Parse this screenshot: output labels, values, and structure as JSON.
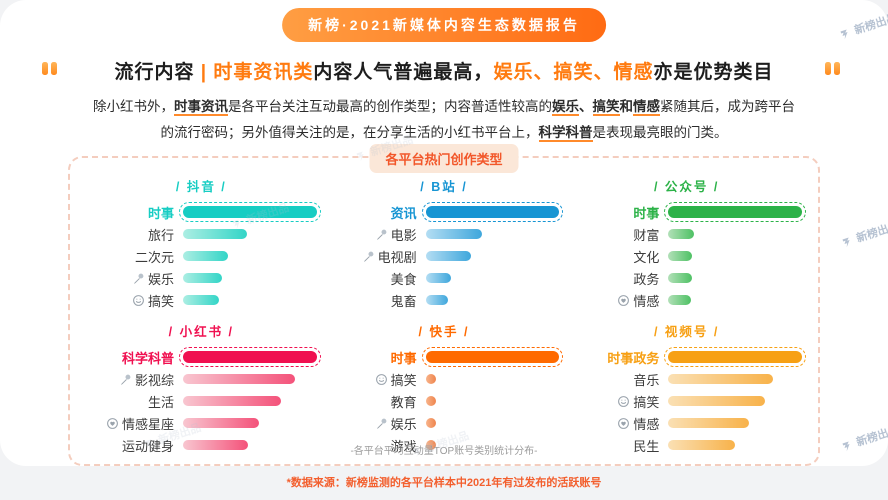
{
  "banner": {
    "title": "新榜·2021新媒体内容生态数据报告"
  },
  "headline": {
    "segments": [
      {
        "text": "流行内容 ",
        "style": "dark"
      },
      {
        "text": "| ",
        "style": "accent"
      },
      {
        "text": "时事资讯类",
        "style": "accent"
      },
      {
        "text": "内容人气普遍最高，",
        "style": "dark"
      },
      {
        "text": "娱乐、搞笑、情感",
        "style": "accent"
      },
      {
        "text": "亦是优势类目",
        "style": "dark"
      }
    ]
  },
  "paragraph": {
    "segments": [
      {
        "text": "除小红书外，",
        "style": "n"
      },
      {
        "text": "时事资讯",
        "style": "bu"
      },
      {
        "text": "是各平台关注互动最高的创作类型；内容普适性较高的",
        "style": "n"
      },
      {
        "text": "娱乐",
        "style": "bu"
      },
      {
        "text": "、",
        "style": "b"
      },
      {
        "text": "搞笑",
        "style": "bu"
      },
      {
        "text": "和",
        "style": "b"
      },
      {
        "text": "情感",
        "style": "bu"
      },
      {
        "text": "紧随其后，成为跨平台的流行密码；另外值得关注的是，在分享生活的小红书平台上，",
        "style": "n"
      },
      {
        "text": "科学科普",
        "style": "bu"
      },
      {
        "text": "是表现最亮眼的门类。",
        "style": "n"
      }
    ]
  },
  "panel": {
    "badge": "各平台热门创作类型",
    "footnote": "-各平台平均互动量TOP账号类别统计分布-"
  },
  "source_note": "*数据来源：新榜监测的各平台样本中2021年有过发布的活跃账号",
  "watermark": {
    "label": "新榜出品"
  },
  "chart_data": [
    {
      "type": "bar",
      "platform": "抖音",
      "title": "/ 抖音 /",
      "value_note": "relative average interaction of TOP accounts, % of longest bar",
      "xlim": [
        0,
        100
      ],
      "colors": {
        "main": "#17CDC3",
        "from": "#ACEEE3",
        "to": "#33D5C7"
      },
      "rows": [
        {
          "label": "时事",
          "icon": "none",
          "value": 100,
          "highlight": true
        },
        {
          "label": "旅行",
          "icon": "none",
          "value": 48,
          "highlight": false
        },
        {
          "label": "二次元",
          "icon": "none",
          "value": 34,
          "highlight": false
        },
        {
          "label": "娱乐",
          "icon": "mic",
          "value": 29,
          "highlight": false
        },
        {
          "label": "搞笑",
          "icon": "smiley",
          "value": 27,
          "highlight": false
        }
      ]
    },
    {
      "type": "bar",
      "platform": "B站",
      "title": "/ B站 /",
      "value_note": "relative average interaction of TOP accounts, % of longest bar",
      "xlim": [
        0,
        100
      ],
      "colors": {
        "main": "#1795D3",
        "from": "#B3DDF3",
        "to": "#3FA7DC"
      },
      "rows": [
        {
          "label": "资讯",
          "icon": "none",
          "value": 100,
          "highlight": true
        },
        {
          "label": "电影",
          "icon": "mic",
          "value": 42,
          "highlight": false
        },
        {
          "label": "电视剧",
          "icon": "mic",
          "value": 34,
          "highlight": false
        },
        {
          "label": "美食",
          "icon": "none",
          "value": 19,
          "highlight": false
        },
        {
          "label": "鬼畜",
          "icon": "none",
          "value": 17,
          "highlight": false
        }
      ]
    },
    {
      "type": "bar",
      "platform": "公众号",
      "title": "/ 公众号 /",
      "value_note": "relative average interaction of TOP accounts, % of longest bar",
      "xlim": [
        0,
        100
      ],
      "colors": {
        "main": "#2CB248",
        "from": "#B2E0B8",
        "to": "#4EC164"
      },
      "rows": [
        {
          "label": "时事",
          "icon": "none",
          "value": 100,
          "highlight": true
        },
        {
          "label": "财富",
          "icon": "none",
          "value": 19,
          "highlight": false
        },
        {
          "label": "文化",
          "icon": "none",
          "value": 18,
          "highlight": false
        },
        {
          "label": "政务",
          "icon": "none",
          "value": 18,
          "highlight": false
        },
        {
          "label": "情感",
          "icon": "heart",
          "value": 17,
          "highlight": false
        }
      ]
    },
    {
      "type": "bar",
      "platform": "小红书",
      "title": "/ 小红书 /",
      "value_note": "relative average interaction of TOP accounts, % of longest bar",
      "xlim": [
        0,
        100
      ],
      "colors": {
        "main": "#F01050",
        "from": "#F8C6D0",
        "to": "#F4527A"
      },
      "rows": [
        {
          "label": "科学科普",
          "icon": "none",
          "value": 100,
          "highlight": true
        },
        {
          "label": "影视综",
          "icon": "mic",
          "value": 84,
          "highlight": false
        },
        {
          "label": "生活",
          "icon": "none",
          "value": 73,
          "highlight": false
        },
        {
          "label": "情感星座",
          "icon": "heart",
          "value": 57,
          "highlight": false
        },
        {
          "label": "运动健身",
          "icon": "none",
          "value": 49,
          "highlight": false
        }
      ]
    },
    {
      "type": "bar",
      "platform": "快手",
      "title": "/ 快手 /",
      "value_note": "relative average interaction of TOP accounts, % of longest bar",
      "xlim": [
        0,
        100
      ],
      "colors": {
        "main": "#FF6A00",
        "from": "#F8B48B",
        "to": "#EF844C"
      },
      "rows": [
        {
          "label": "时事",
          "icon": "none",
          "value": 100,
          "highlight": true
        },
        {
          "label": "搞笑",
          "icon": "smiley",
          "value": 8,
          "highlight": false
        },
        {
          "label": "教育",
          "icon": "none",
          "value": 8,
          "highlight": false
        },
        {
          "label": "娱乐",
          "icon": "mic",
          "value": 8,
          "highlight": false
        },
        {
          "label": "游戏",
          "icon": "none",
          "value": 8,
          "highlight": false
        }
      ]
    },
    {
      "type": "bar",
      "platform": "视频号",
      "title": "/ 视频号 /",
      "value_note": "relative average interaction of TOP accounts, % of longest bar",
      "xlim": [
        0,
        100
      ],
      "colors": {
        "main": "#F7A014",
        "from": "#FAE0B4",
        "to": "#F8B24A"
      },
      "rows": [
        {
          "label": "时事政务",
          "icon": "none",
          "value": 100,
          "highlight": true
        },
        {
          "label": "音乐",
          "icon": "none",
          "value": 78,
          "highlight": false
        },
        {
          "label": "搞笑",
          "icon": "smiley",
          "value": 72,
          "highlight": false
        },
        {
          "label": "情感",
          "icon": "heart",
          "value": 60,
          "highlight": false
        },
        {
          "label": "民生",
          "icon": "none",
          "value": 50,
          "highlight": false
        }
      ]
    }
  ]
}
